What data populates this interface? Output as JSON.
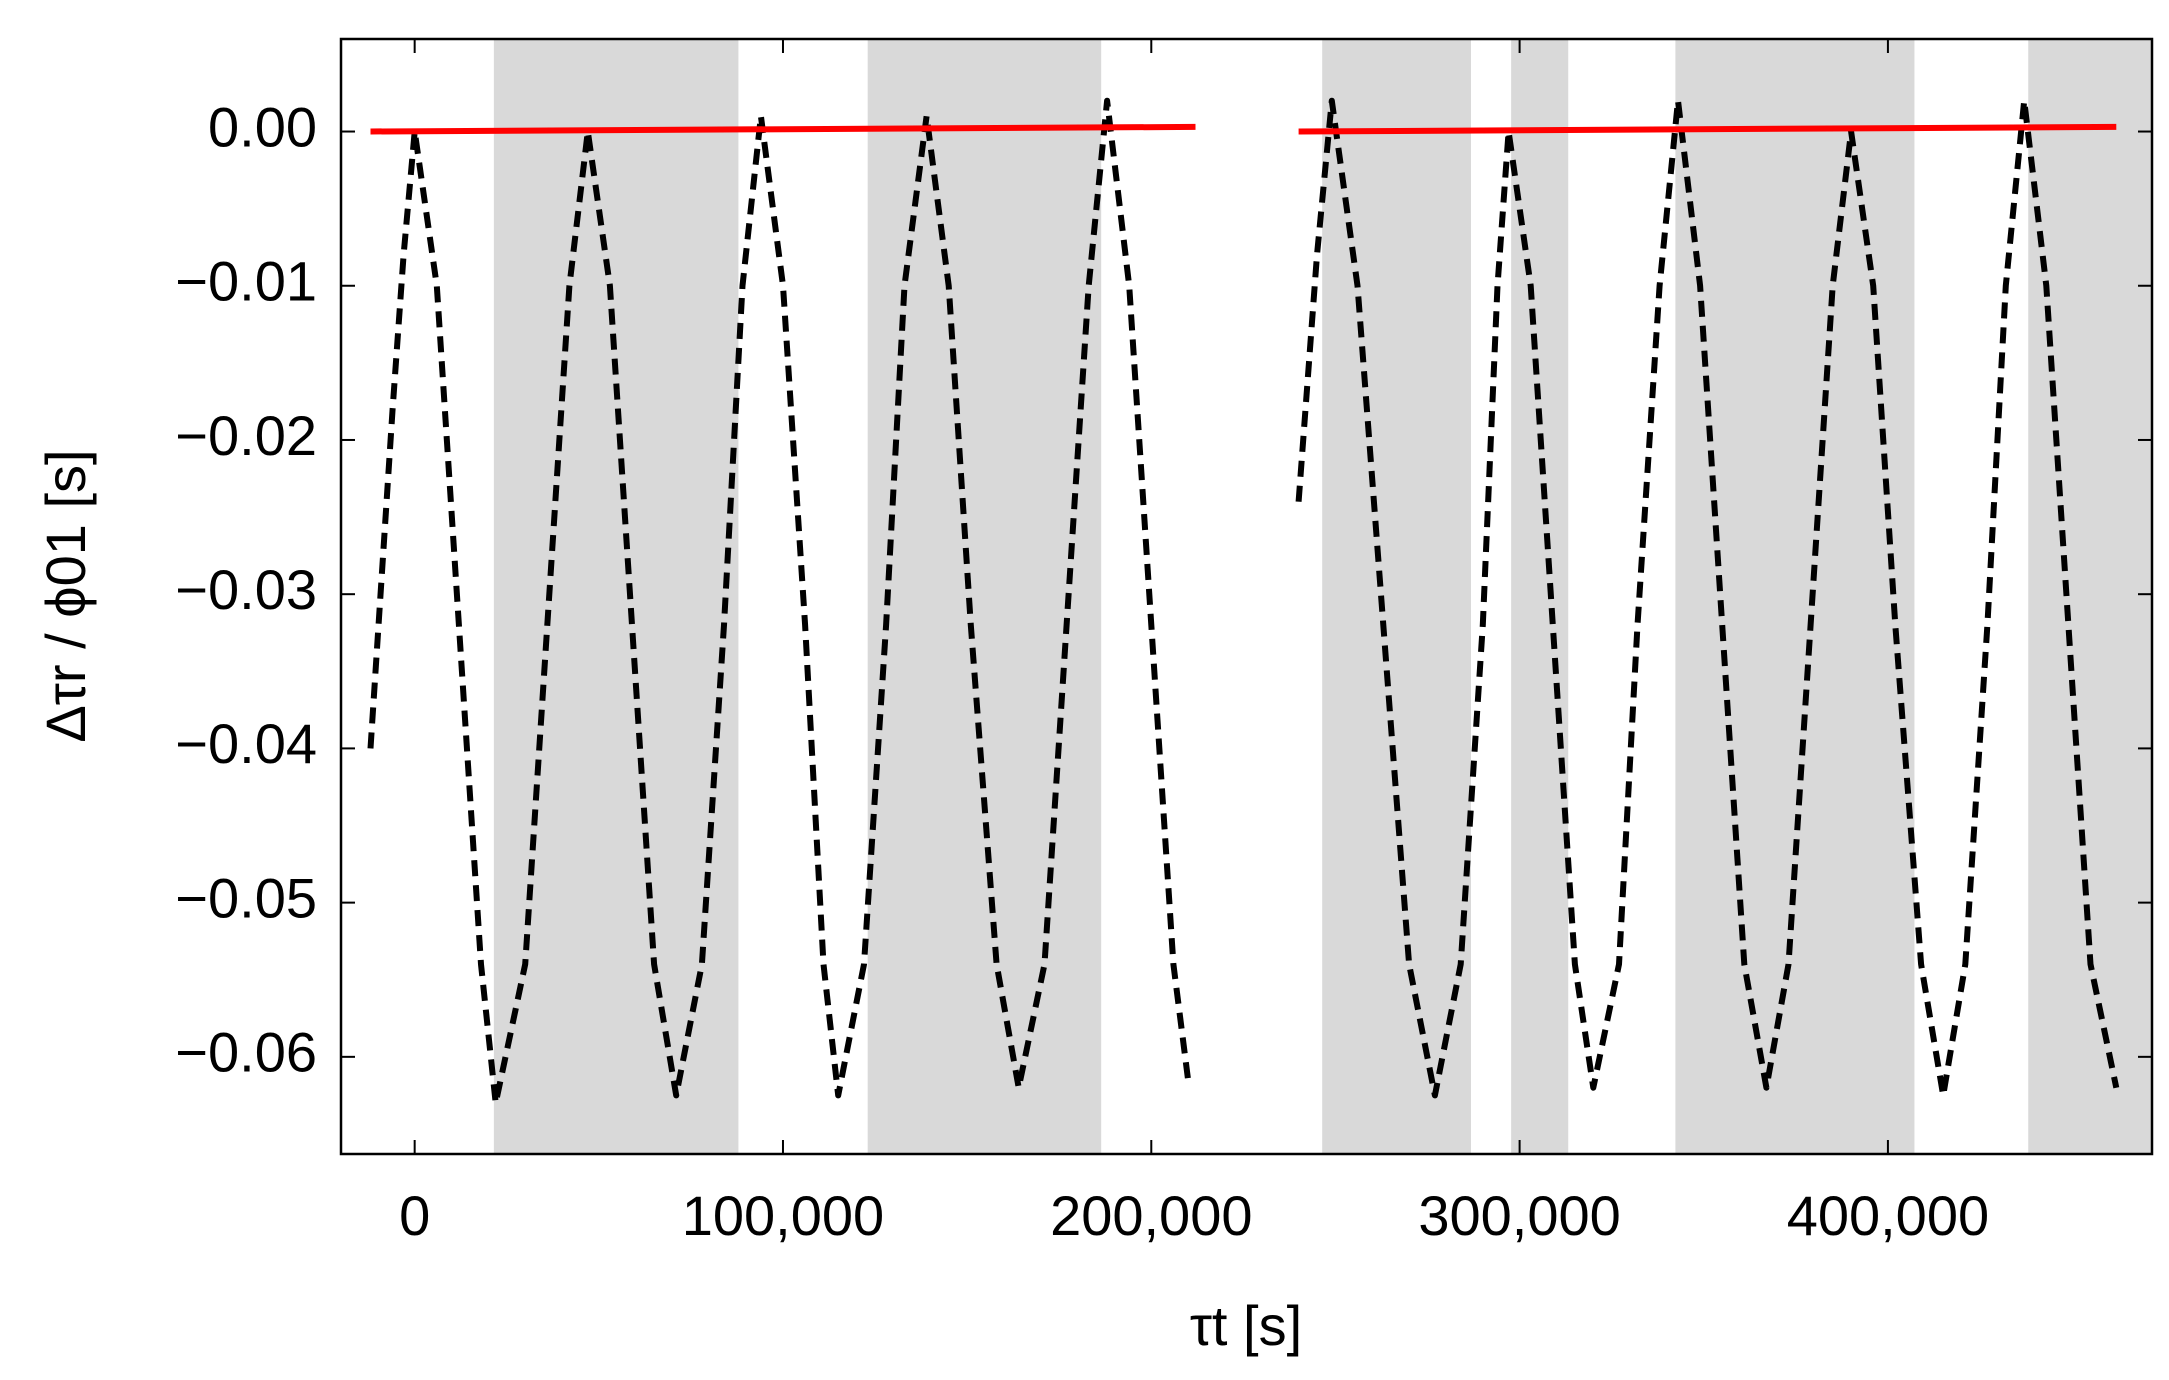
{
  "chart_data": {
    "type": "line",
    "xlabel": "τt [s]",
    "ylabel": "Δτr / ϕ01 [s]",
    "xlim": [
      -20000,
      471700
    ],
    "ylim": [
      -0.0663,
      0.006
    ],
    "xticks": [
      0,
      {
        "value": 100000,
        "label": "100,000"
      },
      {
        "value": 200000,
        "label": "200,000"
      },
      {
        "value": 300000,
        "label": "300,000"
      },
      {
        "value": 400000,
        "label": "400,000"
      }
    ],
    "yticks": [
      {
        "value": 0,
        "label": "0.00"
      },
      {
        "value": -0.01,
        "label": "−0.01"
      },
      {
        "value": -0.02,
        "label": "−0.02"
      },
      {
        "value": -0.03,
        "label": "−0.03"
      },
      {
        "value": -0.04,
        "label": "−0.04"
      },
      {
        "value": -0.05,
        "label": "−0.05"
      },
      {
        "value": -0.06,
        "label": "−0.06"
      }
    ],
    "shaded_regions": [
      [
        21500,
        87900
      ],
      [
        123000,
        186400
      ],
      [
        246400,
        286800
      ],
      [
        297700,
        313200
      ],
      [
        342300,
        407200
      ],
      [
        438100,
        471700
      ]
    ],
    "shade_color": "#d9d9d9",
    "series": [
      {
        "color": "#000000",
        "dashed": true,
        "x": [
          -12000,
          -6000,
          -3000,
          0,
          6000,
          12000,
          18000,
          22000,
          30000,
          36000,
          42000,
          47000,
          53000,
          59000,
          65000,
          71000,
          78000,
          84000,
          89000,
          94000,
          100000,
          106000,
          111000,
          115000,
          122000,
          128000,
          133000,
          139000,
          145000,
          151000,
          158000,
          164000,
          171000,
          177000,
          183000,
          188000,
          194000,
          200000,
          206000,
          210000,
          225000,
          240000,
          245000,
          249000,
          256000,
          263000,
          270000,
          277000,
          284000,
          290000,
          294000,
          297000,
          303000,
          309000,
          315000,
          320000,
          327000,
          332000,
          338000,
          343000,
          349000,
          355000,
          361000,
          367000,
          373000,
          379000,
          385000,
          390000,
          396000,
          402000,
          409000,
          415000,
          421000,
          427000,
          432000,
          437000,
          443000,
          449000,
          455000,
          462000
        ],
        "values": [
          -0.04,
          -0.018,
          -0.008,
          0.0,
          -0.01,
          -0.032,
          -0.054,
          -0.063,
          -0.054,
          -0.032,
          -0.01,
          0.0,
          -0.01,
          -0.032,
          -0.054,
          -0.0625,
          -0.054,
          -0.032,
          -0.01,
          0.001,
          -0.01,
          -0.032,
          -0.054,
          -0.0625,
          -0.054,
          -0.032,
          -0.01,
          0.001,
          -0.01,
          -0.032,
          -0.054,
          -0.062,
          -0.054,
          -0.032,
          -0.01,
          0.002,
          -0.01,
          -0.032,
          -0.054,
          -0.0615,
          null,
          -0.024,
          -0.008,
          0.002,
          -0.01,
          -0.032,
          -0.054,
          -0.0625,
          -0.054,
          -0.032,
          -0.01,
          0.0,
          -0.01,
          -0.032,
          -0.054,
          -0.062,
          -0.054,
          -0.032,
          -0.01,
          0.002,
          -0.01,
          -0.032,
          -0.054,
          -0.062,
          -0.054,
          -0.032,
          -0.01,
          0.0,
          -0.01,
          -0.032,
          -0.054,
          -0.0625,
          -0.054,
          -0.032,
          -0.01,
          0.002,
          -0.01,
          -0.032,
          -0.054,
          -0.062
        ]
      },
      {
        "color": "#ff0000",
        "dashed": false,
        "x": [
          -12000,
          212000,
          225000,
          240000,
          462000
        ],
        "values": [
          0.0,
          0.0003,
          null,
          0.0,
          0.0003
        ]
      }
    ]
  }
}
